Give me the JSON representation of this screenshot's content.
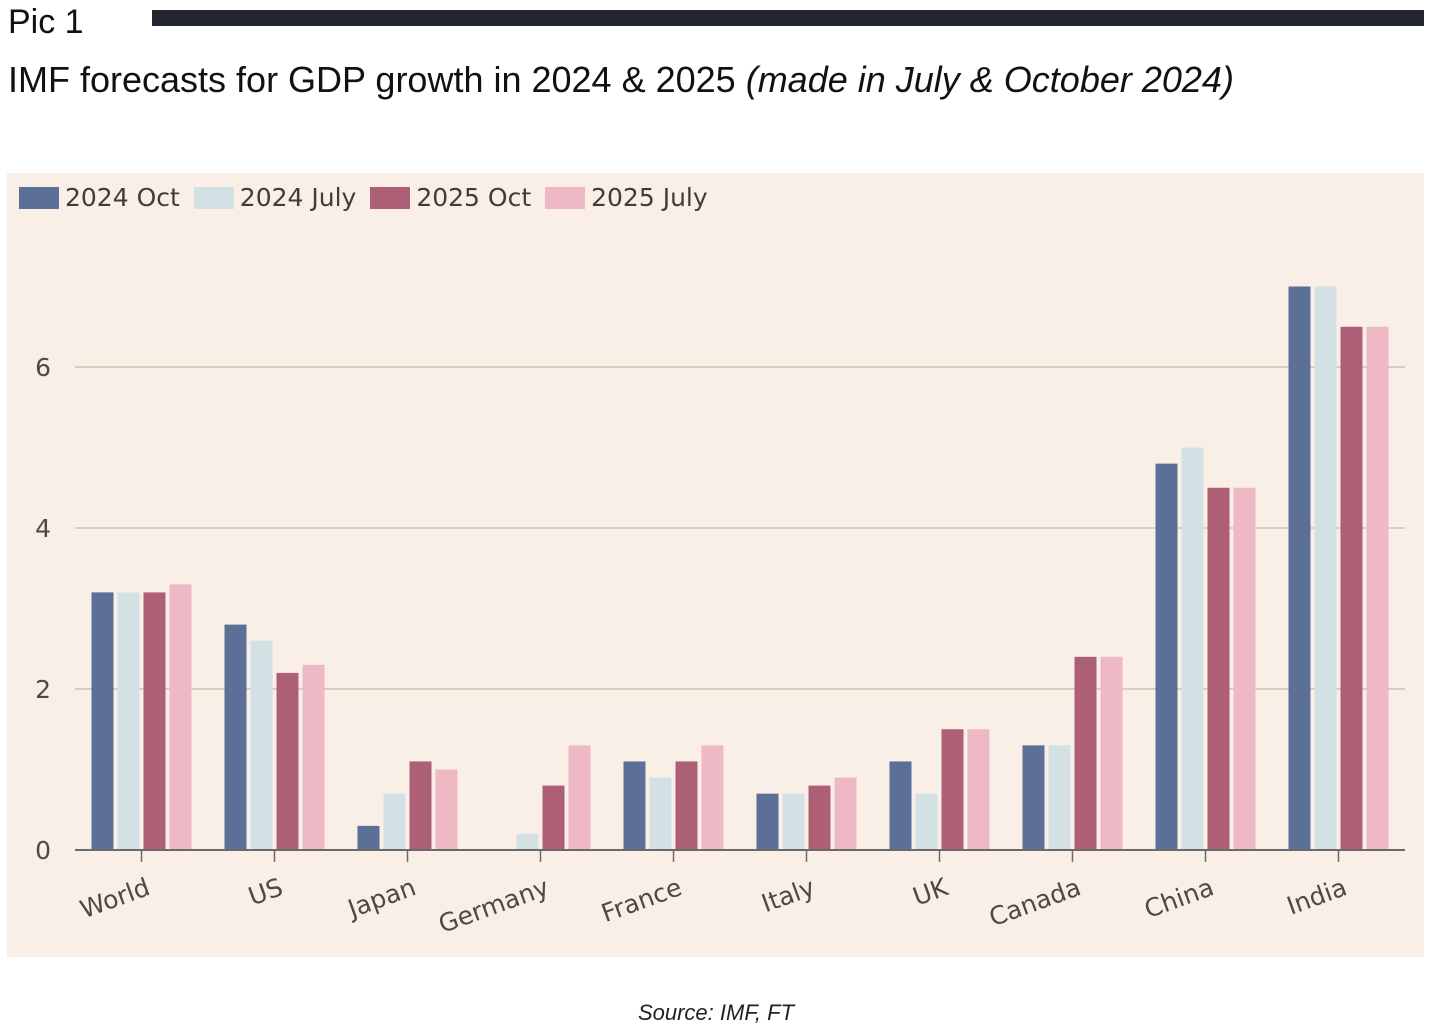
{
  "header": {
    "pic_label": "Pic 1",
    "title_main": "IMF forecasts for GDP growth in 2024 & 2025",
    "title_sub": "(made in July & October 2024)"
  },
  "source": "Source: IMF, FT",
  "colors": {
    "panel_bg": "#f9efe6",
    "rule": "#23252f",
    "series": [
      "#5b6f97",
      "#d3e1e5",
      "#ad5f76",
      "#eeb8c5"
    ]
  },
  "chart_data": {
    "type": "bar",
    "title": "IMF forecasts for GDP growth in 2024 & 2025",
    "subtitle": "(made in July & October 2024)",
    "xlabel": "",
    "ylabel": "",
    "categories": [
      "World",
      "US",
      "Japan",
      "Germany",
      "France",
      "Italy",
      "UK",
      "Canada",
      "China",
      "India"
    ],
    "series": [
      {
        "name": "2024 Oct",
        "values": [
          3.2,
          2.8,
          0.3,
          0.0,
          1.1,
          0.7,
          1.1,
          1.3,
          4.8,
          7.0
        ]
      },
      {
        "name": "2024 July",
        "values": [
          3.2,
          2.6,
          0.7,
          0.2,
          0.9,
          0.7,
          0.7,
          1.3,
          5.0,
          7.0
        ]
      },
      {
        "name": "2025 Oct",
        "values": [
          3.2,
          2.2,
          1.1,
          0.8,
          1.1,
          0.8,
          1.5,
          2.4,
          4.5,
          6.5
        ]
      },
      {
        "name": "2025 July",
        "values": [
          3.3,
          2.3,
          1.0,
          1.3,
          1.3,
          0.9,
          1.5,
          2.4,
          4.5,
          6.5
        ]
      }
    ],
    "ylim": [
      0,
      7.5
    ],
    "yticks": [
      0,
      2,
      4,
      6
    ],
    "grid": true,
    "legend_position": "top-left"
  }
}
